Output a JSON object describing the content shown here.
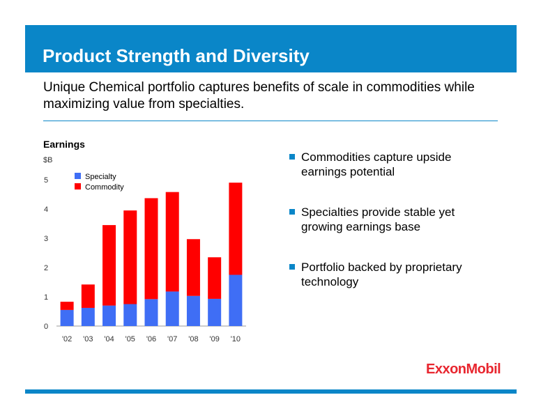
{
  "slide": {
    "title": "Product Strength and Diversity",
    "subtitle": "Unique Chemical portfolio captures benefits of scale in commodities while maximizing value from specialties.",
    "chart_heading": "Earnings",
    "bullets": [
      "Commodities capture upside earnings potential",
      "Specialties provide stable yet growing earnings base",
      "Portfolio backed by proprietary technology"
    ],
    "logo": "ExxonMobil",
    "colors": {
      "accent": "#0a86c8",
      "specialty": "#3f6ef5",
      "commodity": "#ff0000",
      "logo": "#e8262f"
    }
  },
  "chart_data": {
    "type": "bar",
    "stacked": true,
    "ylabel": "$B",
    "ylim": [
      0,
      5
    ],
    "yticks": [
      0,
      1,
      2,
      3,
      4,
      5
    ],
    "categories": [
      "'02",
      "'03",
      "'04",
      "'05",
      "'06",
      "'07",
      "'08",
      "'09",
      "'10"
    ],
    "series": [
      {
        "name": "Specialty",
        "color": "#3f6ef5",
        "values": [
          0.55,
          0.62,
          0.7,
          0.75,
          0.92,
          1.18,
          1.03,
          0.93,
          1.75
        ]
      },
      {
        "name": "Commodity",
        "color": "#ff0000",
        "values": [
          0.28,
          0.8,
          2.75,
          3.2,
          3.45,
          3.4,
          1.94,
          1.42,
          3.15
        ]
      }
    ],
    "legend_position": "top-left",
    "grid": false
  }
}
